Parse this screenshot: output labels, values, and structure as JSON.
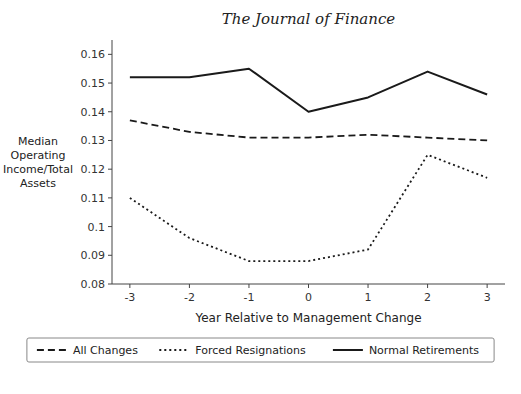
{
  "chart_data": {
    "type": "line",
    "title": "The Journal of Finance",
    "x_label": "Year Relative to Management Change",
    "y_label": "Median\nOperating\nIncome/Total\nAssets",
    "x": [
      -3,
      -2,
      -1,
      0,
      1,
      2,
      3
    ],
    "series": [
      {
        "name": "All Changes",
        "color": "#1a1a1a",
        "line_style": "dashed",
        "values": [
          0.137,
          0.133,
          0.131,
          0.131,
          0.132,
          0.131,
          0.13
        ]
      },
      {
        "name": "Forced Resignations",
        "color": "#1a1a1a",
        "line_style": "dotted",
        "values": [
          0.11,
          0.096,
          0.088,
          0.088,
          0.092,
          0.125,
          0.117
        ]
      },
      {
        "name": "Normal Retirements",
        "color": "#1a1a1a",
        "line_style": "solid",
        "values": [
          0.152,
          0.152,
          0.155,
          0.14,
          0.145,
          0.154,
          0.146
        ]
      }
    ],
    "xlim": [
      -3.3,
      3.3
    ],
    "xticks": [
      -3,
      -2,
      -1,
      0,
      1,
      2,
      3
    ],
    "ylim": [
      0.08,
      0.165
    ],
    "yticks": [
      0.08,
      0.09,
      0.1,
      0.11,
      0.12,
      0.13,
      0.14,
      0.15,
      0.16
    ],
    "grid": false,
    "legend": "bottom"
  }
}
